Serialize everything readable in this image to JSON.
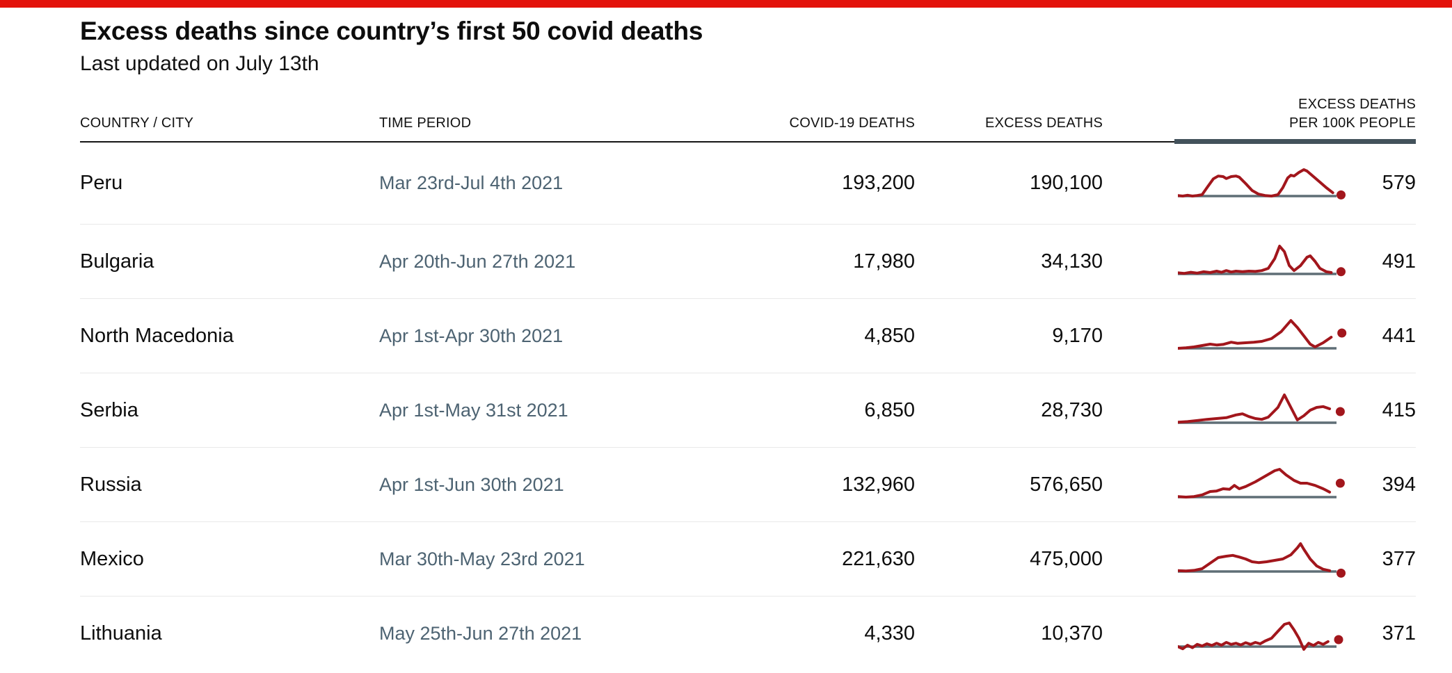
{
  "page": {
    "title": "Excess deaths since country’s first 50 covid deaths",
    "subtitle": "Last updated on July 13th"
  },
  "colors": {
    "brand_red": "#e3120b",
    "spark_red": "#a2161c",
    "spark_baseline": "#5f6e76",
    "time_text": "#4d6372",
    "header_rule_dark": "#141414",
    "header_rule_slate": "#43525b",
    "row_divider": "#e9e9e9",
    "text": "#0d0d0d"
  },
  "table": {
    "columns": {
      "country": "COUNTRY / CITY",
      "time_period": "TIME PERIOD",
      "covid_deaths": "COVID-19 DEATHS",
      "excess_deaths": "EXCESS DEATHS",
      "per_100k_line1": "EXCESS DEATHS",
      "per_100k_line2": "PER 100K PEOPLE"
    }
  },
  "chart_data": {
    "type": "table",
    "title": "Excess deaths since country’s first 50 covid deaths",
    "subtitle": "Last updated on July 13th",
    "columns": [
      "COUNTRY / CITY",
      "TIME PERIOD",
      "COVID-19 DEATHS",
      "EXCESS DEATHS",
      "EXCESS DEATHS PER 100K PEOPLE"
    ],
    "sparkline_note": "Each row shows a red line chart of excess deaths over the time period, with a gray baseline at zero and a red dot at the latest value; y normalized 0-1 of row maximum.",
    "rows": [
      {
        "country": "Peru",
        "time_period": "Mar 23rd-Jul 4th 2021",
        "covid_deaths": "193,200",
        "excess_deaths": "190,100",
        "per_100k": "579",
        "spark": {
          "points": [
            [
              0,
              0.02
            ],
            [
              0.03,
              0
            ],
            [
              0.06,
              0.03
            ],
            [
              0.09,
              0
            ],
            [
              0.12,
              0.02
            ],
            [
              0.15,
              0.05
            ],
            [
              0.18,
              0.3
            ],
            [
              0.22,
              0.62
            ],
            [
              0.25,
              0.72
            ],
            [
              0.28,
              0.7
            ],
            [
              0.3,
              0.63
            ],
            [
              0.33,
              0.7
            ],
            [
              0.36,
              0.72
            ],
            [
              0.38,
              0.68
            ],
            [
              0.42,
              0.45
            ],
            [
              0.46,
              0.2
            ],
            [
              0.5,
              0.07
            ],
            [
              0.54,
              0.02
            ],
            [
              0.58,
              0
            ],
            [
              0.62,
              0.05
            ],
            [
              0.65,
              0.3
            ],
            [
              0.68,
              0.65
            ],
            [
              0.7,
              0.75
            ],
            [
              0.72,
              0.72
            ],
            [
              0.75,
              0.85
            ],
            [
              0.78,
              0.95
            ],
            [
              0.8,
              0.9
            ],
            [
              0.84,
              0.7
            ],
            [
              0.88,
              0.5
            ],
            [
              0.92,
              0.3
            ],
            [
              0.96,
              0.12
            ]
          ],
          "dot": [
            0.985,
            0.04
          ]
        }
      },
      {
        "country": "Bulgaria",
        "time_period": "Apr 20th-Jun 27th 2021",
        "covid_deaths": "17,980",
        "excess_deaths": "34,130",
        "per_100k": "491",
        "spark": {
          "points": [
            [
              0,
              0.04
            ],
            [
              0.04,
              0.02
            ],
            [
              0.08,
              0.06
            ],
            [
              0.12,
              0.03
            ],
            [
              0.16,
              0.08
            ],
            [
              0.2,
              0.05
            ],
            [
              0.24,
              0.1
            ],
            [
              0.27,
              0.06
            ],
            [
              0.3,
              0.12
            ],
            [
              0.33,
              0.07
            ],
            [
              0.36,
              0.1
            ],
            [
              0.4,
              0.08
            ],
            [
              0.44,
              0.1
            ],
            [
              0.48,
              0.09
            ],
            [
              0.52,
              0.12
            ],
            [
              0.56,
              0.2
            ],
            [
              0.6,
              0.55
            ],
            [
              0.63,
              1
            ],
            [
              0.66,
              0.8
            ],
            [
              0.69,
              0.3
            ],
            [
              0.72,
              0.12
            ],
            [
              0.76,
              0.3
            ],
            [
              0.8,
              0.6
            ],
            [
              0.82,
              0.65
            ],
            [
              0.85,
              0.45
            ],
            [
              0.88,
              0.2
            ],
            [
              0.92,
              0.08
            ],
            [
              0.95,
              0.05
            ]
          ],
          "dot": [
            0.985,
            0.08
          ]
        }
      },
      {
        "country": "North Macedonia",
        "time_period": "Apr 1st-Apr 30th 2021",
        "covid_deaths": "4,850",
        "excess_deaths": "9,170",
        "per_100k": "441",
        "spark": {
          "points": [
            [
              0,
              0
            ],
            [
              0.05,
              0.02
            ],
            [
              0.1,
              0.05
            ],
            [
              0.15,
              0.1
            ],
            [
              0.2,
              0.15
            ],
            [
              0.24,
              0.12
            ],
            [
              0.28,
              0.14
            ],
            [
              0.33,
              0.22
            ],
            [
              0.37,
              0.18
            ],
            [
              0.42,
              0.2
            ],
            [
              0.47,
              0.22
            ],
            [
              0.52,
              0.25
            ],
            [
              0.58,
              0.35
            ],
            [
              0.64,
              0.6
            ],
            [
              0.7,
              1
            ],
            [
              0.74,
              0.75
            ],
            [
              0.78,
              0.45
            ],
            [
              0.82,
              0.15
            ],
            [
              0.85,
              0.05
            ],
            [
              0.9,
              0.2
            ],
            [
              0.95,
              0.4
            ]
          ],
          "dot": [
            0.99,
            0.55
          ]
        }
      },
      {
        "country": "Serbia",
        "time_period": "Apr 1st-May 31st 2021",
        "covid_deaths": "6,850",
        "excess_deaths": "28,730",
        "per_100k": "415",
        "spark": {
          "points": [
            [
              0,
              0.02
            ],
            [
              0.06,
              0.04
            ],
            [
              0.12,
              0.08
            ],
            [
              0.18,
              0.12
            ],
            [
              0.24,
              0.15
            ],
            [
              0.3,
              0.18
            ],
            [
              0.36,
              0.28
            ],
            [
              0.4,
              0.32
            ],
            [
              0.44,
              0.22
            ],
            [
              0.48,
              0.15
            ],
            [
              0.52,
              0.12
            ],
            [
              0.56,
              0.2
            ],
            [
              0.62,
              0.55
            ],
            [
              0.66,
              1
            ],
            [
              0.7,
              0.55
            ],
            [
              0.74,
              0.1
            ],
            [
              0.78,
              0.25
            ],
            [
              0.82,
              0.45
            ],
            [
              0.86,
              0.55
            ],
            [
              0.9,
              0.58
            ],
            [
              0.94,
              0.5
            ]
          ],
          "dot": [
            0.98,
            0.4
          ]
        }
      },
      {
        "country": "Russia",
        "time_period": "Apr 1st-Jun 30th 2021",
        "covid_deaths": "132,960",
        "excess_deaths": "576,650",
        "per_100k": "394",
        "spark": {
          "points": [
            [
              0,
              0.02
            ],
            [
              0.05,
              0
            ],
            [
              0.1,
              0.02
            ],
            [
              0.15,
              0.08
            ],
            [
              0.2,
              0.2
            ],
            [
              0.24,
              0.22
            ],
            [
              0.28,
              0.3
            ],
            [
              0.32,
              0.28
            ],
            [
              0.35,
              0.42
            ],
            [
              0.38,
              0.3
            ],
            [
              0.42,
              0.38
            ],
            [
              0.48,
              0.55
            ],
            [
              0.54,
              0.75
            ],
            [
              0.6,
              0.95
            ],
            [
              0.63,
              1
            ],
            [
              0.67,
              0.8
            ],
            [
              0.72,
              0.6
            ],
            [
              0.76,
              0.5
            ],
            [
              0.8,
              0.5
            ],
            [
              0.85,
              0.42
            ],
            [
              0.9,
              0.3
            ],
            [
              0.94,
              0.18
            ]
          ],
          "dot": [
            0.98,
            0.5
          ]
        }
      },
      {
        "country": "Mexico",
        "time_period": "Mar 30th-May 23rd 2021",
        "covid_deaths": "221,630",
        "excess_deaths": "475,000",
        "per_100k": "377",
        "spark": {
          "points": [
            [
              0,
              0.03
            ],
            [
              0.05,
              0.02
            ],
            [
              0.1,
              0.04
            ],
            [
              0.15,
              0.1
            ],
            [
              0.2,
              0.3
            ],
            [
              0.25,
              0.5
            ],
            [
              0.3,
              0.55
            ],
            [
              0.34,
              0.58
            ],
            [
              0.38,
              0.52
            ],
            [
              0.42,
              0.45
            ],
            [
              0.46,
              0.35
            ],
            [
              0.5,
              0.32
            ],
            [
              0.55,
              0.35
            ],
            [
              0.6,
              0.4
            ],
            [
              0.65,
              0.45
            ],
            [
              0.7,
              0.6
            ],
            [
              0.74,
              0.85
            ],
            [
              0.76,
              1
            ],
            [
              0.78,
              0.8
            ],
            [
              0.82,
              0.45
            ],
            [
              0.86,
              0.2
            ],
            [
              0.9,
              0.08
            ],
            [
              0.94,
              0.03
            ]
          ],
          "dot": [
            0.985,
            -0.06
          ]
        }
      },
      {
        "country": "Lithuania",
        "time_period": "May 25th-Jun 27th 2021",
        "covid_deaths": "4,330",
        "excess_deaths": "10,370",
        "per_100k": "371",
        "spark": {
          "points": [
            [
              0,
              0
            ],
            [
              0.03,
              -0.08
            ],
            [
              0.06,
              0.05
            ],
            [
              0.09,
              -0.04
            ],
            [
              0.12,
              0.08
            ],
            [
              0.15,
              0.02
            ],
            [
              0.18,
              0.1
            ],
            [
              0.21,
              0.04
            ],
            [
              0.24,
              0.12
            ],
            [
              0.27,
              0.05
            ],
            [
              0.3,
              0.15
            ],
            [
              0.33,
              0.08
            ],
            [
              0.36,
              0.12
            ],
            [
              0.39,
              0.06
            ],
            [
              0.42,
              0.14
            ],
            [
              0.45,
              0.08
            ],
            [
              0.48,
              0.15
            ],
            [
              0.51,
              0.1
            ],
            [
              0.54,
              0.2
            ],
            [
              0.58,
              0.3
            ],
            [
              0.62,
              0.55
            ],
            [
              0.66,
              0.8
            ],
            [
              0.69,
              0.85
            ],
            [
              0.72,
              0.6
            ],
            [
              0.75,
              0.3
            ],
            [
              0.78,
              -0.1
            ],
            [
              0.81,
              0.12
            ],
            [
              0.84,
              0.04
            ],
            [
              0.87,
              0.15
            ],
            [
              0.9,
              0.08
            ],
            [
              0.93,
              0.18
            ]
          ],
          "dot": [
            0.97,
            0.25
          ]
        }
      }
    ]
  }
}
